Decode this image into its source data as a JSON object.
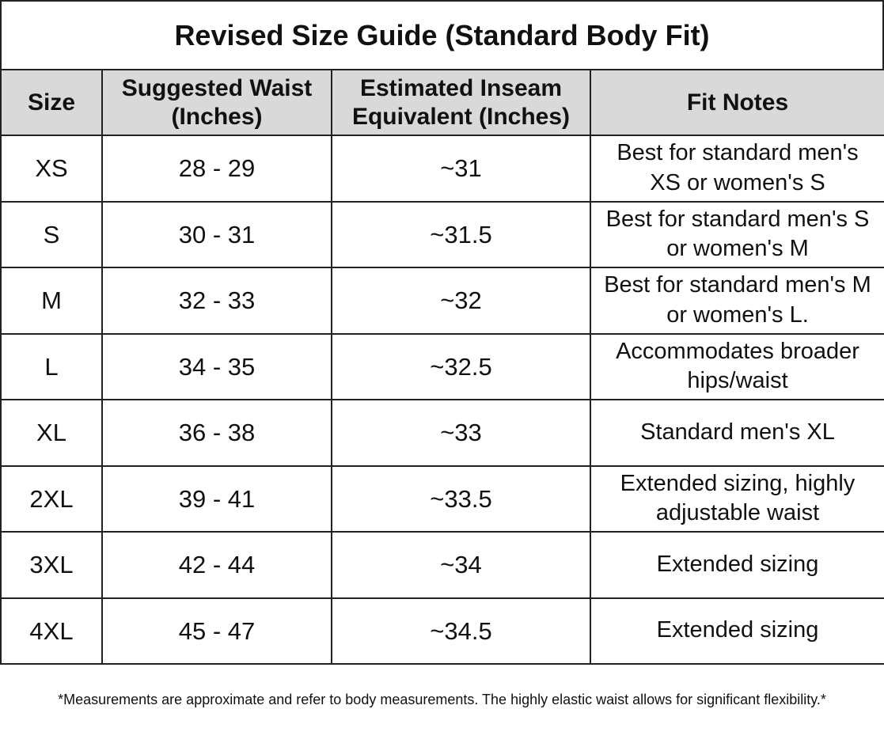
{
  "title": "Revised Size Guide (Standard Body Fit)",
  "table": {
    "header": [
      "Size",
      "Suggested Waist (Inches)",
      "Estimated Inseam Equivalent (Inches)",
      "Fit Notes"
    ],
    "rows": [
      [
        "XS",
        "28 - 29",
        "~31",
        "Best for standard men's XS or women's S"
      ],
      [
        "S",
        "30 - 31",
        "~31.5",
        "Best for standard men's S or women's M"
      ],
      [
        "M",
        "32 - 33",
        "~32",
        "Best for standard men's M or women's L."
      ],
      [
        "L",
        "34 - 35",
        "~32.5",
        "Accommodates broader hips/waist"
      ],
      [
        "XL",
        "36 - 38",
        "~33",
        "Standard men's XL"
      ],
      [
        "2XL",
        "39 - 41",
        "~33.5",
        "Extended sizing, highly adjustable waist"
      ],
      [
        "3XL",
        "42 - 44",
        "~34",
        "Extended sizing"
      ],
      [
        "4XL",
        "45 - 47",
        "~34.5",
        "Extended sizing"
      ]
    ]
  },
  "footnote": "*Measurements are approximate and refer to body measurements. The highly elastic waist allows for significant flexibility.*"
}
